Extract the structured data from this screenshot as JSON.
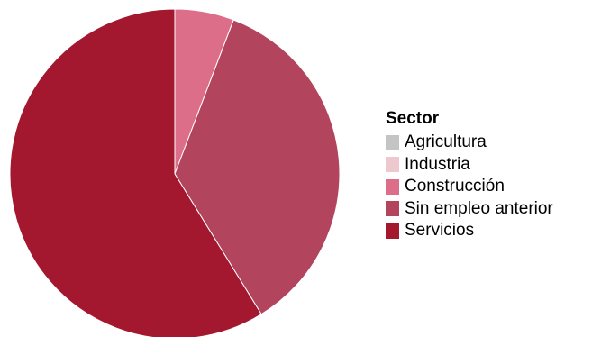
{
  "chart_data": {
    "type": "pie",
    "legend_title": "Sector",
    "legend_position": "right",
    "slices": [
      {
        "label": "Agricultura",
        "value": 0,
        "color": "#c4c4c4"
      },
      {
        "label": "Industria",
        "value": 0,
        "color": "#edc9cf"
      },
      {
        "label": "Construcción",
        "value": 5.8,
        "color": "#dd6e89"
      },
      {
        "label": "Sin empleo anterior",
        "value": 35.4,
        "color": "#b2445d"
      },
      {
        "label": "Servicios",
        "value": 58.8,
        "color": "#a3182e"
      }
    ]
  }
}
